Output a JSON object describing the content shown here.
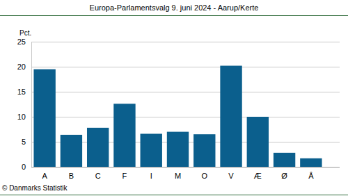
{
  "chart_data": {
    "type": "bar",
    "title": "Europa-Parlamentsvalg 9. juni 2024 - Aarup/Kerte",
    "y_label": "Pct.",
    "source": "© Danmarks Statistik",
    "categories": [
      "A",
      "B",
      "C",
      "F",
      "I",
      "M",
      "O",
      "V",
      "Æ",
      "Ø",
      "Å"
    ],
    "values": [
      19.5,
      6.4,
      7.8,
      12.6,
      6.6,
      7.0,
      6.5,
      20.2,
      10.0,
      2.8,
      1.7
    ],
    "color": "#0b5f8d",
    "ylim": [
      0,
      25
    ],
    "yticks": [
      0,
      5,
      10,
      15,
      20,
      25
    ],
    "grid": true
  }
}
